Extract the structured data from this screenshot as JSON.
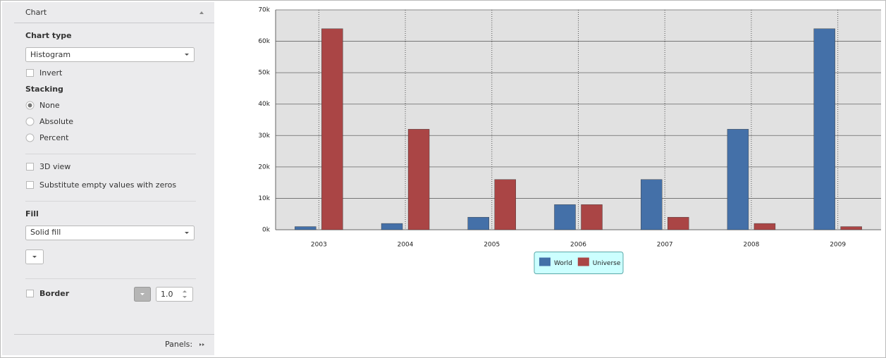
{
  "panel": {
    "header": "Chart",
    "chart_type_label": "Chart type",
    "chart_type": "Histogram",
    "invert": "Invert",
    "stacking_label": "Stacking",
    "stacking_options": [
      "None",
      "Absolute",
      "Percent"
    ],
    "view_3d": "3D view",
    "substitute": "Substitute empty values with zeros",
    "fill_label": "Fill",
    "fill": "Solid fill",
    "border": "Border",
    "border_width": "1.0",
    "panels": "Panels:"
  },
  "chart_data": {
    "type": "bar",
    "categories": [
      "2003",
      "2004",
      "2005",
      "2006",
      "2007",
      "2008",
      "2009"
    ],
    "series": [
      {
        "name": "World",
        "color": "#4470a8",
        "values": [
          1000,
          2000,
          4000,
          8000,
          16000,
          32000,
          64000
        ]
      },
      {
        "name": "Universe",
        "color": "#aa4545",
        "values": [
          64000,
          32000,
          16000,
          8000,
          4000,
          2000,
          1000
        ]
      }
    ],
    "ylim": [
      0,
      70000
    ],
    "yticks": [
      {
        "value": 0,
        "label": "0k"
      },
      {
        "value": 10000,
        "label": "10k"
      },
      {
        "value": 20000,
        "label": "20k"
      },
      {
        "value": 30000,
        "label": "30k"
      },
      {
        "value": 40000,
        "label": "40k"
      },
      {
        "value": 50000,
        "label": "50k"
      },
      {
        "value": 60000,
        "label": "60k"
      },
      {
        "value": 70000,
        "label": "70k"
      }
    ],
    "grid": true,
    "legend": "bottom"
  }
}
